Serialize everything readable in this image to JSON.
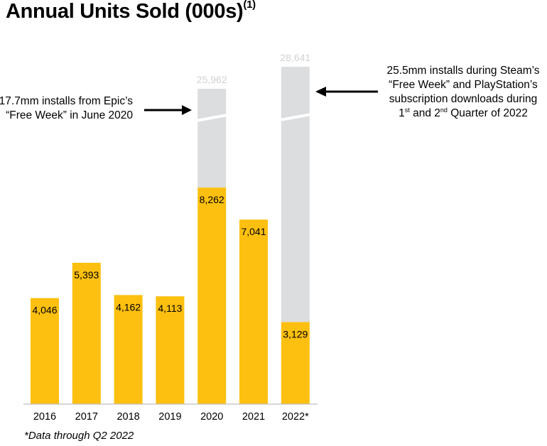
{
  "title": "Annual Units Sold (000s)",
  "title_superscript": "(1)",
  "chart_data": {
    "type": "bar",
    "categories": [
      "2016",
      "2017",
      "2018",
      "2019",
      "2020",
      "2021",
      "2022*"
    ],
    "series": [
      {
        "values": [
          4046,
          5393,
          4162,
          4113,
          8262,
          7041,
          3129
        ],
        "color": "#FDC010"
      }
    ],
    "value_labels": [
      "4,046",
      "5,393",
      "4,162",
      "4,113",
      "8,262",
      "7,041",
      "3,129"
    ],
    "broken_totals": [
      {
        "category": "2020",
        "value": 25962,
        "label": "25,962"
      },
      {
        "category": "2022*",
        "value": 28641,
        "label": "28,641"
      }
    ],
    "broken_color": "#DCDDDE",
    "axis_break": true,
    "grid": false
  },
  "annotations": {
    "note_2020": [
      "17.7mm installs from Epic’s",
      "“Free Week” in June 2020"
    ],
    "note_2022": {
      "line1": "25.5mm installs during Steam’s",
      "line2": "“Free Week” and PlayStation’s",
      "line3": "subscription downloads during",
      "line4_part1": "1",
      "line4_sup1": "st",
      "line4_part2": " and 2",
      "line4_sup2": "nd",
      "line4_part3": " Quarter of 2022"
    }
  },
  "footnote": "*Data through Q2 2022"
}
